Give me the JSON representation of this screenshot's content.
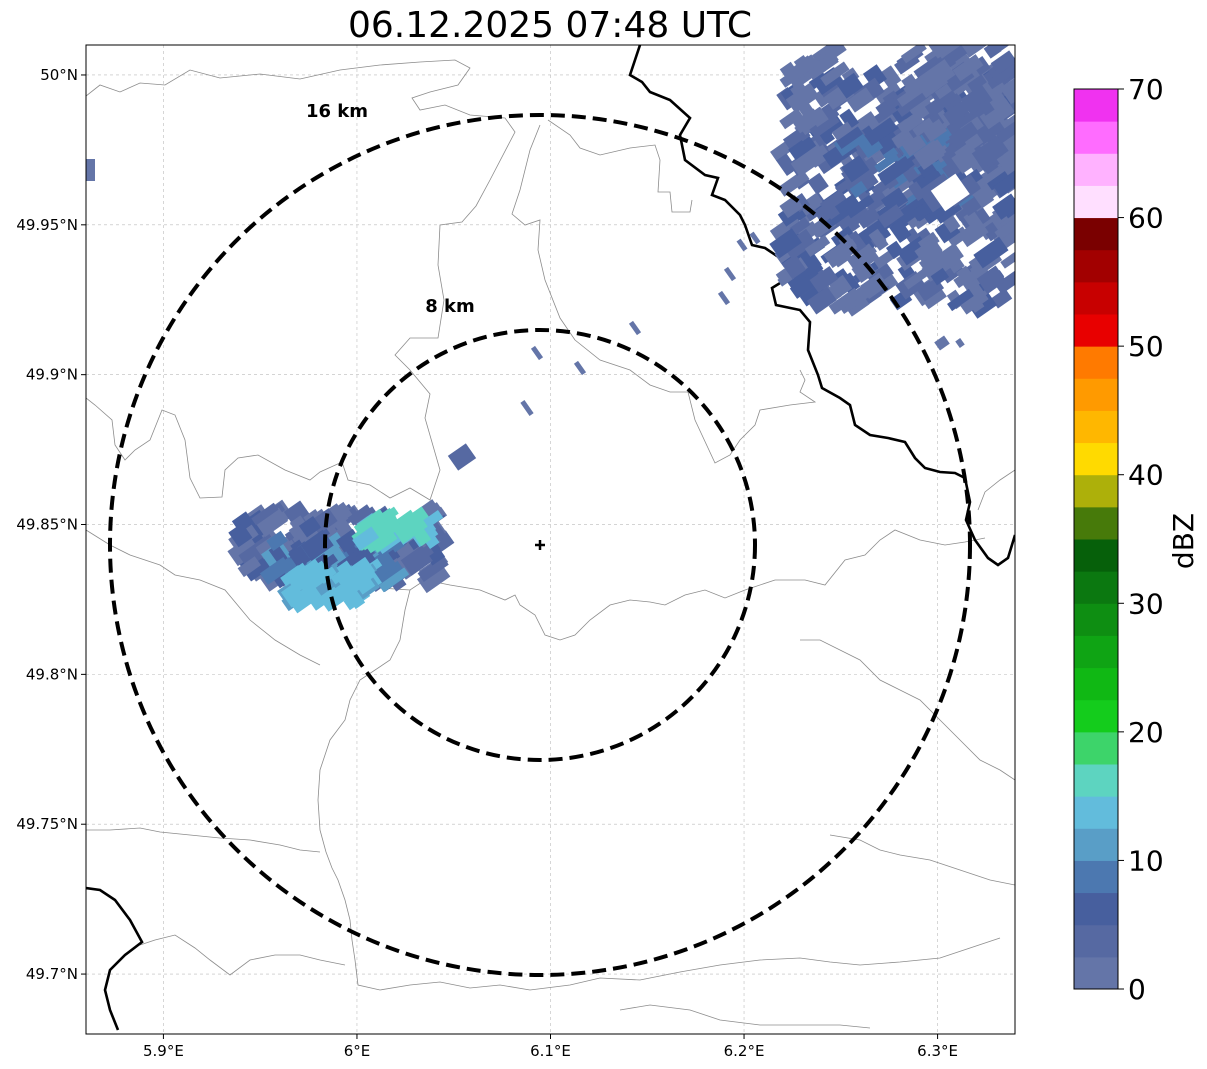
{
  "title": "06.12.2025 07:48 UTC",
  "map": {
    "lon_range": [
      5.86,
      6.34
    ],
    "lat_range": [
      49.68,
      50.01
    ],
    "x_ticks": [
      {
        "value": 5.9,
        "label": "5.9°E"
      },
      {
        "value": 6.0,
        "label": "6°E"
      },
      {
        "value": 6.1,
        "label": "6.1°E"
      },
      {
        "value": 6.2,
        "label": "6.2°E"
      },
      {
        "value": 6.3,
        "label": "6.3°E"
      }
    ],
    "y_ticks": [
      {
        "value": 50.0,
        "label": "50°N"
      },
      {
        "value": 49.95,
        "label": "49.95°N"
      },
      {
        "value": 49.9,
        "label": "49.9°N"
      },
      {
        "value": 49.85,
        "label": "49.85°N"
      },
      {
        "value": 49.8,
        "label": "49.8°N"
      },
      {
        "value": 49.75,
        "label": "49.75°N"
      },
      {
        "value": 49.7,
        "label": "49.7°N"
      }
    ],
    "grid": true,
    "radar_center": {
      "lon": 6.095,
      "lat": 49.843
    },
    "range_rings": [
      {
        "radius_km": 8,
        "label": "8 km"
      },
      {
        "radius_km": 16,
        "label": "16 km"
      }
    ]
  },
  "colorbar": {
    "label": "dBZ",
    "min": 0,
    "max": 70,
    "tick_labels": [
      "0",
      "10",
      "20",
      "30",
      "40",
      "50",
      "60",
      "70"
    ],
    "colors": [
      "#6475a8",
      "#5669a2",
      "#475f9e",
      "#4c78b0",
      "#599ec7",
      "#62bcdc",
      "#5dd4c0",
      "#3dd46a",
      "#14cc1c",
      "#10b814",
      "#0fa414",
      "#0e8e12",
      "#0b7810",
      "#06600a",
      "#477a0a",
      "#adb00a",
      "#ffda00",
      "#ffb700",
      "#ff9a00",
      "#ff7a00",
      "#e80000",
      "#c80000",
      "#a20000",
      "#7a0000",
      "#ffdfff",
      "#ffb2ff",
      "#ff6cff",
      "#f032f0"
    ]
  },
  "chart_data": {
    "type": "heatmap",
    "title": "06.12.2025 07:48 UTC",
    "xlabel": "",
    "ylabel": "",
    "x_range": [
      5.86,
      6.34
    ],
    "y_range": [
      49.68,
      50.01
    ],
    "value_label": "dBZ",
    "value_range": [
      0,
      70
    ],
    "echo_cells": [
      {
        "lon": 5.965,
        "lat": 49.852,
        "dbz": 3
      },
      {
        "lon": 5.99,
        "lat": 49.845,
        "dbz": 6
      },
      {
        "lon": 6.015,
        "lat": 49.852,
        "dbz": 9
      },
      {
        "lon": 6.03,
        "lat": 49.848,
        "dbz": 17
      },
      {
        "lon": 5.98,
        "lat": 49.825,
        "dbz": 14
      },
      {
        "lon": 6.02,
        "lat": 49.838,
        "dbz": 16
      },
      {
        "lon": 6.053,
        "lat": 49.873,
        "dbz": 4
      },
      {
        "lon": 6.28,
        "lat": 49.96,
        "dbz": 6
      },
      {
        "lon": 6.27,
        "lat": 49.985,
        "dbz": 3
      }
    ]
  }
}
